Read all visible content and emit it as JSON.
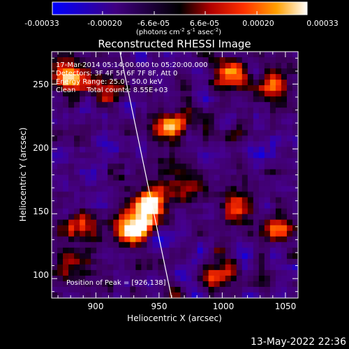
{
  "colorbar": {
    "tick_labels": [
      "-0.00033",
      "-0.00020",
      "-6.6e-05",
      "6.6e-05",
      "0.00020",
      "0.00033"
    ],
    "unit_main": "(photons cm",
    "unit_exp1": "-2",
    "unit_mid1": " s",
    "unit_exp2": "-1",
    "unit_mid2": " asec",
    "unit_exp3": "-2",
    "unit_end": ")"
  },
  "plot": {
    "title": "Reconstructed RHESSI Image",
    "info_lines": [
      "17-Mar-2014 05:14:00.000 to 05:20:00.000",
      "Detectors: 3F 4F 5F 6F 7F 8F, Att 0",
      "Energy Range: 25.0 - 50.0 keV",
      "Clean     Total counts: 8.55E+03"
    ],
    "peak_label": "Position of Peak = [926,138]",
    "xlabel": "Heliocentric X (arcsec)",
    "ylabel": "Heliocentric Y (arcsec)",
    "x_ticks": [
      "900",
      "950",
      "1000",
      "1050"
    ],
    "y_ticks": [
      "100",
      "150",
      "200",
      "250"
    ]
  },
  "footer": {
    "timestamp": "13-May-2022 22:36"
  },
  "colors": {
    "background": "#000000",
    "text": "#ffffff",
    "colormap": [
      "#0000ff",
      "#000000",
      "#ff0000",
      "#ffa000",
      "#ffffff"
    ]
  },
  "chart_data": {
    "type": "heatmap",
    "title": "Reconstructed RHESSI Image",
    "xlabel": "Heliocentric X (arcsec)",
    "ylabel": "Heliocentric Y (arcsec)",
    "xlim": [
      865,
      1060
    ],
    "ylim": [
      85,
      275
    ],
    "x_ticks": [
      900,
      950,
      1000,
      1050
    ],
    "y_ticks": [
      100,
      150,
      200,
      250
    ],
    "color_range": [
      -0.00033,
      0.00033
    ],
    "colorbar_ticks": [
      -0.00033,
      -0.0002,
      -6.6e-05,
      6.6e-05,
      0.0002,
      0.00033
    ],
    "peak_position": [
      926,
      138
    ],
    "limb_line": [
      [
        919,
        275
      ],
      [
        960,
        85
      ]
    ],
    "hot_spots": [
      {
        "x": 930,
        "y": 140,
        "intensity": 1.0
      },
      {
        "x": 943,
        "y": 158,
        "intensity": 0.9
      },
      {
        "x": 877,
        "y": 255,
        "intensity": 0.8
      },
      {
        "x": 958,
        "y": 218,
        "intensity": 0.7
      },
      {
        "x": 888,
        "y": 142,
        "intensity": 0.6
      },
      {
        "x": 1006,
        "y": 258,
        "intensity": 0.6
      },
      {
        "x": 1043,
        "y": 248,
        "intensity": 0.5
      },
      {
        "x": 1000,
        "y": 102,
        "intensity": 0.5
      },
      {
        "x": 1012,
        "y": 160,
        "intensity": 0.5
      },
      {
        "x": 1047,
        "y": 140,
        "intensity": 0.5
      },
      {
        "x": 880,
        "y": 110,
        "intensity": 0.5
      },
      {
        "x": 905,
        "y": 245,
        "intensity": 0.45
      },
      {
        "x": 975,
        "y": 175,
        "intensity": 0.35
      }
    ]
  }
}
